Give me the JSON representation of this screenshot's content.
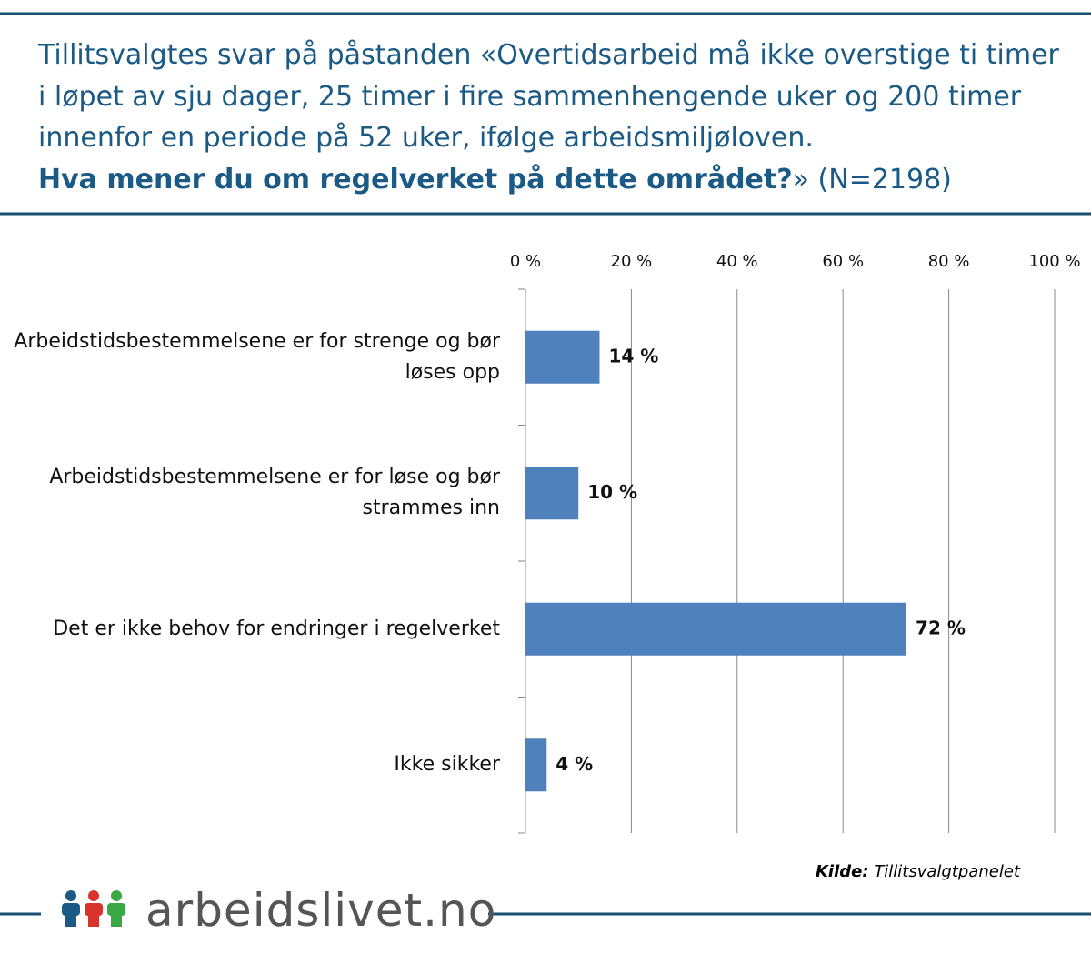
{
  "chart_data": {
    "type": "bar",
    "title": "Tillitsvalgtes svar på påstanden «Overtidsarbeid må ikke overstige ti timer i løpet av sju dager, 25 timer i fire sammenhengende uker og 200 timer innenfor en periode på 52 uker, ifølge arbeidsmiljøloven.",
    "question": "Hva mener du om regelverket på dette området?",
    "title_suffix": "» (N=2198)",
    "categories": [
      "Arbeidstidsbestemmelsene er for strenge og bør løses opp",
      "Arbeidstidsbestemmelsene er for løse og bør strammes inn",
      "Det er ikke behov for endringer i regelverket",
      "Ikke sikker"
    ],
    "values": [
      14,
      10,
      72,
      4
    ],
    "value_labels": [
      "14 %",
      "10 %",
      "72 %",
      "4 %"
    ],
    "color": "#4f81bd",
    "xlim": [
      0,
      100
    ],
    "xticks": [
      {
        "value": 0,
        "label": "0 %"
      },
      {
        "value": 20,
        "label": "20 %"
      },
      {
        "value": 40,
        "label": "40 %"
      },
      {
        "value": 60,
        "label": "60 %"
      },
      {
        "value": 80,
        "label": "80 %"
      },
      {
        "value": 100,
        "label": "100 %"
      }
    ],
    "grid": true,
    "source_label": "Kilde:",
    "source": "Tillitsvalgtpanelet",
    "brand": "arbeidslivet.no"
  }
}
